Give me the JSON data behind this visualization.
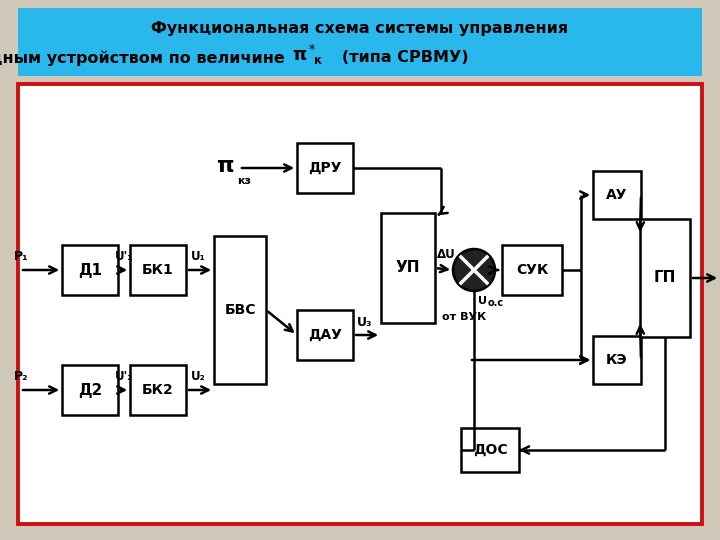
{
  "title_line1": "Функциональная схема системы управления",
  "title_line2_a": "входным устройством по величине ",
  "title_line2_b": "   (типа СРВМУ)",
  "title_bg": "#2ab8ec",
  "bg_color": "#cfc8b8",
  "diagram_bg": "#ffffff",
  "border_red": "#cc1111",
  "black": "#000000",
  "note_uos": "U",
  "note_ос": "о.с",
  "note_ot_vuk": "от ВУК"
}
